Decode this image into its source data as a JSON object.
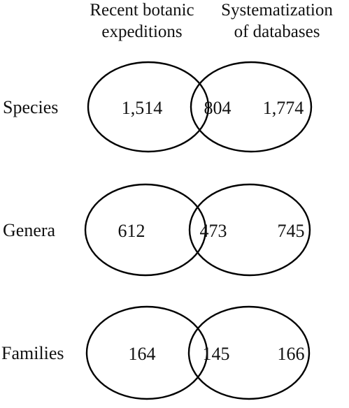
{
  "headers": {
    "left": [
      "Recent botanic",
      "expeditions"
    ],
    "right": [
      "Systematization",
      "of databases"
    ]
  },
  "rows": [
    {
      "label": "Species",
      "left_only": "1,514",
      "overlap": "804",
      "right_only": "1,774"
    },
    {
      "label": "Genera",
      "left_only": "612",
      "overlap": "473",
      "right_only": "745"
    },
    {
      "label": "Families",
      "left_only": "164",
      "overlap": "145",
      "right_only": "166"
    }
  ]
}
